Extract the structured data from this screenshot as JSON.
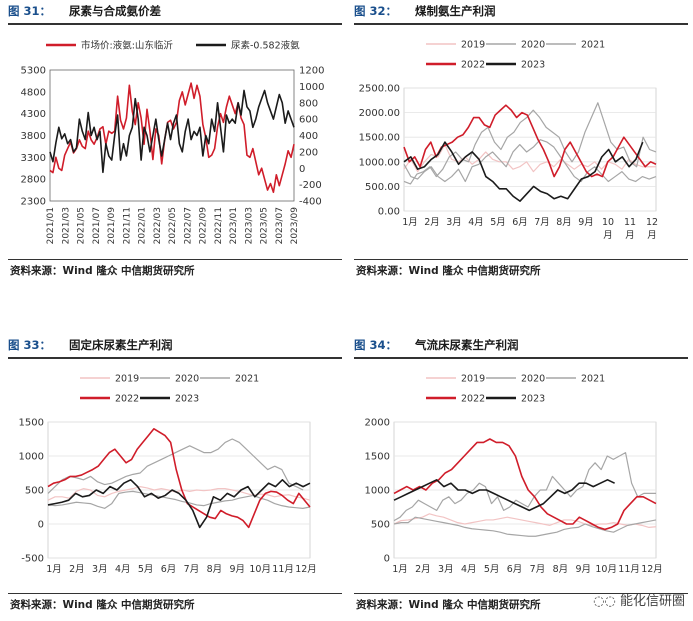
{
  "charts": [
    {
      "figure": "图 31：",
      "title": "尿素与合成氨价差",
      "source": "资料来源：Wind 隆众 中信期货研究所"
    },
    {
      "figure": "图 32：",
      "title": "煤制氨生产利润",
      "source": "资料来源：Wind 隆众 中信期货研究所"
    },
    {
      "figure": "图 33：",
      "title": "固定床尿素生产利润",
      "source": "资料来源：Wind 隆众 中信期货研究所"
    },
    {
      "figure": "图 34：",
      "title": "气流床尿素生产利润",
      "source": "资料来源：Wind 隆众 中信期货研究所"
    }
  ],
  "watermark": "能化信研圈",
  "colors": {
    "red": "#d01d2a",
    "black": "#1b1b1b",
    "gray": "#a6a6a6",
    "pink": "#f2c4c4",
    "grid": "#e3e3e3",
    "accent": "#1a4f8c"
  },
  "chart_data": [
    {
      "type": "line",
      "title": "尿素与合成氨价差",
      "x_ticks": [
        "2021/01",
        "2021/03",
        "2021/05",
        "2021/07",
        "2021/09",
        "2021/11",
        "2022/01",
        "2022/03",
        "2022/05",
        "2022/07",
        "2022/09",
        "2022/11",
        "2023/01",
        "2023/03",
        "2023/05",
        "2023/07",
        "2023/09"
      ],
      "y_left": {
        "ticks": [
          2300,
          2800,
          3300,
          3800,
          4300,
          4800,
          5300
        ],
        "range": [
          2300,
          5300
        ]
      },
      "y_right": {
        "ticks": [
          -400,
          -200,
          0,
          200,
          400,
          600,
          800,
          1000,
          1200
        ],
        "range": [
          -400,
          1200
        ]
      },
      "series": [
        {
          "name": "市场价:液氨:山东临沂",
          "axis": "left",
          "color": "red",
          "values": [
            3000,
            2950,
            3300,
            3050,
            3000,
            3350,
            3500,
            3650,
            3400,
            3500,
            3700,
            3550,
            3500,
            3900,
            3700,
            3600,
            3750,
            3950,
            4000,
            3600,
            3900,
            3850,
            3900,
            4700,
            4150,
            3950,
            4200,
            4950,
            4350,
            4050,
            4550,
            4200,
            3600,
            4400,
            3900,
            3250,
            3950,
            3800,
            3150,
            3700,
            4100,
            4150,
            3950,
            4100,
            4600,
            4800,
            4500,
            4750,
            5000,
            4650,
            4950,
            4700,
            4050,
            3750,
            3300,
            3350,
            3500,
            4000,
            4300,
            4100,
            4450,
            4700,
            4500,
            4300,
            4550,
            4200,
            4050,
            3350,
            3300,
            3500,
            3200,
            2900,
            3050,
            2800,
            2550,
            2700,
            2500,
            2900,
            2650,
            2900,
            3150,
            3450,
            3300,
            3600
          ]
        },
        {
          "name": "尿素-0.582液氨",
          "axis": "right",
          "color": "black",
          "values": [
            200,
            80,
            310,
            500,
            360,
            420,
            300,
            350,
            200,
            250,
            600,
            450,
            350,
            680,
            400,
            500,
            350,
            450,
            -50,
            300,
            150,
            100,
            400,
            650,
            100,
            300,
            150,
            400,
            500,
            850,
            600,
            100,
            500,
            400,
            200,
            400,
            600,
            350,
            150,
            350,
            550,
            350,
            550,
            650,
            300,
            200,
            450,
            600,
            350,
            450,
            400,
            500,
            150,
            400,
            300,
            600,
            450,
            800,
            500,
            200,
            650,
            550,
            600,
            550,
            800,
            650,
            950,
            750,
            700,
            500,
            600,
            750,
            850,
            950,
            800,
            700,
            600,
            750,
            900,
            800,
            550,
            700,
            600,
            500
          ]
        }
      ]
    },
    {
      "type": "line",
      "title": "煤制氨生产利润",
      "x_ticks": [
        "1月",
        "2月",
        "3月",
        "4月",
        "5月",
        "6月",
        "7月",
        "8月",
        "9月",
        "10月",
        "11月",
        "12月"
      ],
      "y": {
        "ticks": [
          "0.00",
          "500.00",
          "1000.00",
          "1500.00",
          "2000.00",
          "2500.00"
        ],
        "range": [
          0,
          2500
        ]
      },
      "legend": [
        "2019",
        "2020",
        "2021",
        "2022",
        "2023"
      ],
      "series": [
        {
          "name": "2019",
          "color": "pink",
          "values": [
            850,
            1050,
            800,
            1000,
            1150,
            1100,
            1350,
            1050,
            1000,
            1100,
            950,
            1050,
            1200,
            1050,
            1000,
            1000,
            850,
            900,
            1000,
            800,
            950,
            1000,
            900,
            1050,
            950,
            850,
            950,
            900,
            1000,
            850,
            1000,
            950,
            850,
            1050,
            950,
            900,
            900,
            900
          ]
        },
        {
          "name": "2020",
          "color": "gray",
          "values": [
            950,
            700,
            650,
            800,
            900,
            700,
            600,
            700,
            850,
            600,
            900,
            950,
            1100,
            1200,
            1050,
            900,
            1200,
            1350,
            1200,
            1300,
            1450,
            1400,
            1300,
            1100,
            900,
            700,
            600,
            800,
            900,
            750,
            600,
            700,
            800,
            650,
            600,
            700,
            650,
            700
          ]
        },
        {
          "name": "2021",
          "color": "gray",
          "values": [
            600,
            550,
            750,
            800,
            900,
            700,
            850,
            1100,
            1200,
            1050,
            1000,
            1350,
            1600,
            1700,
            1400,
            1250,
            1500,
            1600,
            1800,
            1900,
            2050,
            1900,
            1700,
            1600,
            1500,
            1200,
            1000,
            1200,
            1600,
            1900,
            2200,
            1800,
            1400,
            1250,
            1300,
            1000,
            900,
            1500,
            1250,
            1200
          ]
        },
        {
          "name": "2022",
          "color": "red",
          "values": [
            1300,
            1000,
            1100,
            900,
            1250,
            1400,
            1100,
            1300,
            1350,
            1400,
            1500,
            1550,
            1700,
            1900,
            1900,
            1750,
            1700,
            1950,
            2050,
            2150,
            2050,
            1900,
            2000,
            1950,
            1700,
            1450,
            1250,
            1000,
            700,
            900,
            1250,
            1400,
            1200,
            1000,
            800,
            700,
            750,
            700,
            1000,
            1100,
            1300,
            1500,
            1350,
            1200,
            1050,
            900,
            1000,
            950
          ]
        },
        {
          "name": "2023",
          "color": "black",
          "values": [
            1000,
            1100,
            850,
            900,
            1050,
            1150,
            1400,
            1200,
            950,
            1100,
            1200,
            1050,
            700,
            600,
            450,
            450,
            300,
            200,
            350,
            500,
            400,
            350,
            250,
            300,
            250,
            450,
            650,
            700,
            800,
            1100,
            1250,
            1000,
            1100,
            900,
            1050,
            1400
          ]
        }
      ]
    },
    {
      "type": "line",
      "title": "固定床尿素生产利润",
      "x_ticks": [
        "1月",
        "2月",
        "3月",
        "4月",
        "5月",
        "6月",
        "7月",
        "8月",
        "9月",
        "10月",
        "11月",
        "12月"
      ],
      "y": {
        "ticks": [
          "-500",
          "0",
          "500",
          "1000",
          "1500"
        ],
        "range": [
          -500,
          1500
        ]
      },
      "legend": [
        "2019",
        "2020",
        "2021",
        "2022",
        "2023"
      ],
      "series": [
        {
          "name": "2019",
          "color": "pink",
          "values": [
            350,
            400,
            400,
            380,
            480,
            520,
            500,
            420,
            400,
            450,
            480,
            500,
            520,
            550,
            530,
            500,
            520,
            500,
            470,
            500,
            480,
            500,
            490,
            500,
            520,
            520,
            500,
            480,
            450,
            420,
            440,
            430,
            400,
            420,
            430,
            400,
            380,
            350
          ]
        },
        {
          "name": "2020",
          "color": "gray",
          "values": [
            280,
            270,
            280,
            300,
            320,
            310,
            300,
            260,
            230,
            300,
            450,
            470,
            480,
            460,
            440,
            420,
            400,
            380,
            360,
            330,
            310,
            280,
            270,
            300,
            320,
            340,
            350,
            380,
            400,
            420,
            380,
            350,
            300,
            270,
            250,
            240,
            230,
            250
          ]
        },
        {
          "name": "2021",
          "color": "gray",
          "values": [
            450,
            550,
            650,
            700,
            680,
            650,
            700,
            620,
            580,
            600,
            650,
            700,
            730,
            750,
            850,
            900,
            950,
            1000,
            1050,
            1100,
            1150,
            1100,
            1050,
            1050,
            1100,
            1200,
            1250,
            1200,
            1100,
            1000,
            900,
            800,
            850,
            800,
            600,
            550,
            500
          ]
        },
        {
          "name": "2022",
          "color": "red",
          "values": [
            550,
            600,
            620,
            650,
            700,
            700,
            720,
            760,
            800,
            850,
            950,
            1050,
            1100,
            1000,
            900,
            950,
            1100,
            1200,
            1300,
            1400,
            1350,
            1300,
            1200,
            800,
            500,
            300,
            250,
            200,
            150,
            100,
            80,
            200,
            150,
            120,
            100,
            50,
            -50,
            150,
            350,
            450,
            480,
            470,
            420,
            350,
            300,
            450,
            350,
            250
          ]
        },
        {
          "name": "2023",
          "color": "black",
          "values": [
            280,
            300,
            320,
            350,
            450,
            400,
            420,
            500,
            450,
            550,
            500,
            600,
            650,
            550,
            400,
            450,
            380,
            420,
            500,
            450,
            350,
            200,
            -50,
            100,
            400,
            350,
            450,
            400,
            500,
            550,
            400,
            500,
            600,
            550,
            650,
            550,
            600,
            550,
            600
          ]
        }
      ]
    },
    {
      "type": "line",
      "title": "气流床尿素生产利润",
      "x_ticks": [
        "1月",
        "2月",
        "3月",
        "4月",
        "5月",
        "6月",
        "7月",
        "8月",
        "9月",
        "10月",
        "11月",
        "12月"
      ],
      "y": {
        "ticks": [
          "0",
          "500",
          "1000",
          "1500",
          "2000"
        ],
        "range": [
          0,
          2000
        ]
      },
      "legend": [
        "2019",
        "2020",
        "2021",
        "2022",
        "2023"
      ],
      "series": [
        {
          "name": "2019",
          "color": "pink",
          "values": [
            500,
            550,
            560,
            580,
            600,
            650,
            620,
            600,
            560,
            520,
            500,
            520,
            540,
            560,
            560,
            580,
            600,
            580,
            560,
            540,
            520,
            500,
            480,
            520,
            560,
            560,
            540,
            500,
            480,
            500,
            500,
            520,
            500,
            480,
            500,
            480,
            450,
            460
          ]
        },
        {
          "name": "2020",
          "color": "gray",
          "values": [
            500,
            520,
            520,
            600,
            580,
            560,
            540,
            520,
            500,
            480,
            450,
            430,
            420,
            410,
            400,
            380,
            350,
            340,
            330,
            320,
            320,
            340,
            360,
            380,
            420,
            440,
            450,
            500,
            460,
            430,
            400,
            380,
            430,
            480,
            500,
            520,
            540,
            560
          ]
        },
        {
          "name": "2021",
          "color": "gray",
          "values": [
            550,
            600,
            700,
            750,
            850,
            800,
            750,
            700,
            850,
            900,
            800,
            850,
            950,
            1000,
            1100,
            1050,
            800,
            900,
            700,
            750,
            850,
            800,
            750,
            900,
            1000,
            1000,
            1200,
            1100,
            1000,
            900,
            1000,
            1050,
            1300,
            1400,
            1300,
            1500,
            1450,
            1500,
            1550,
            1100,
            900,
            950,
            950,
            950
          ]
        },
        {
          "name": "2022",
          "color": "red",
          "values": [
            950,
            1000,
            1050,
            1000,
            1050,
            1000,
            1100,
            1150,
            1250,
            1300,
            1400,
            1500,
            1600,
            1700,
            1700,
            1750,
            1700,
            1700,
            1650,
            1500,
            1200,
            1000,
            900,
            750,
            650,
            600,
            550,
            500,
            500,
            600,
            550,
            500,
            450,
            420,
            450,
            500,
            700,
            800,
            900,
            900,
            850,
            800
          ]
        },
        {
          "name": "2023",
          "color": "black",
          "values": [
            850,
            900,
            950,
            1000,
            1050,
            1100,
            1150,
            1050,
            1100,
            1000,
            1000,
            950,
            1000,
            1000,
            950,
            900,
            850,
            800,
            750,
            700,
            750,
            800,
            900,
            1000,
            950,
            1000,
            1100,
            1100,
            1050,
            1100,
            1150,
            1100
          ]
        }
      ]
    }
  ]
}
